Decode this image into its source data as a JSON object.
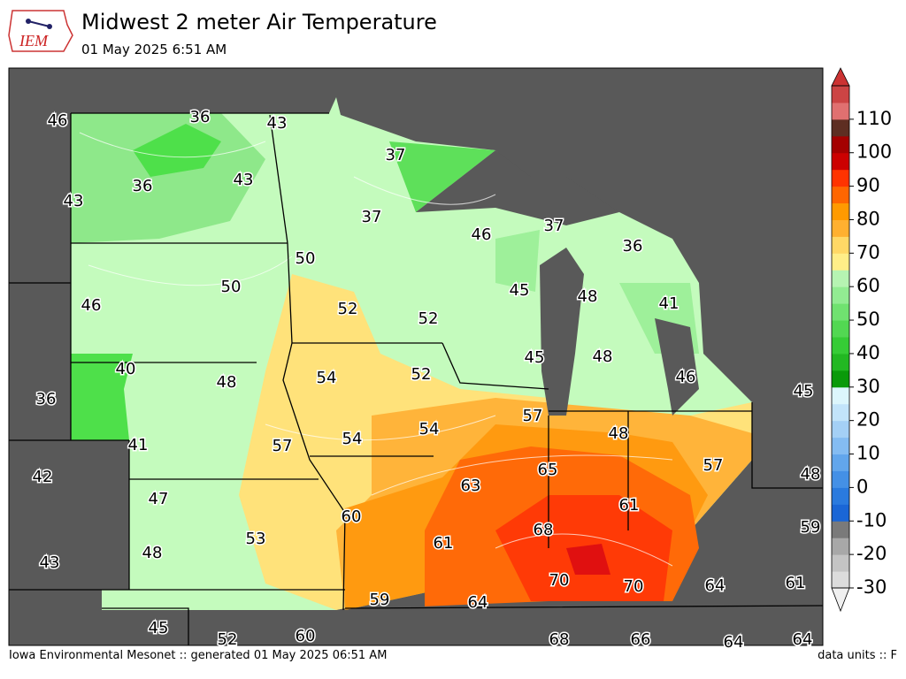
{
  "header": {
    "logo": "IEM",
    "title": "Midwest 2 meter Air Temperature",
    "subtitle": "01 May 2025 6:51 AM"
  },
  "map": {
    "stations": [
      46,
      36,
      43,
      36,
      43,
      43,
      37,
      37,
      46,
      37,
      36,
      50,
      50,
      46,
      52,
      52,
      45,
      48,
      41,
      45,
      48,
      40,
      48,
      54,
      52,
      46,
      45,
      36,
      57,
      48,
      54,
      54,
      41,
      57,
      65,
      57,
      48,
      42,
      63,
      47,
      60,
      61,
      68,
      59,
      53,
      61,
      48,
      43,
      70,
      70,
      64,
      61,
      59,
      64,
      45,
      52,
      60,
      68,
      66,
      64,
      64
    ]
  },
  "colorbar": {
    "range": [
      -30,
      120
    ],
    "ticks": [
      -30,
      -20,
      -10,
      0,
      10,
      20,
      30,
      40,
      50,
      60,
      70,
      80,
      90,
      100,
      110
    ]
  },
  "footer": {
    "left": "Iowa Environmental Mesonet :: generated 01 May 2025 06:51 AM",
    "right": "data units :: F"
  }
}
